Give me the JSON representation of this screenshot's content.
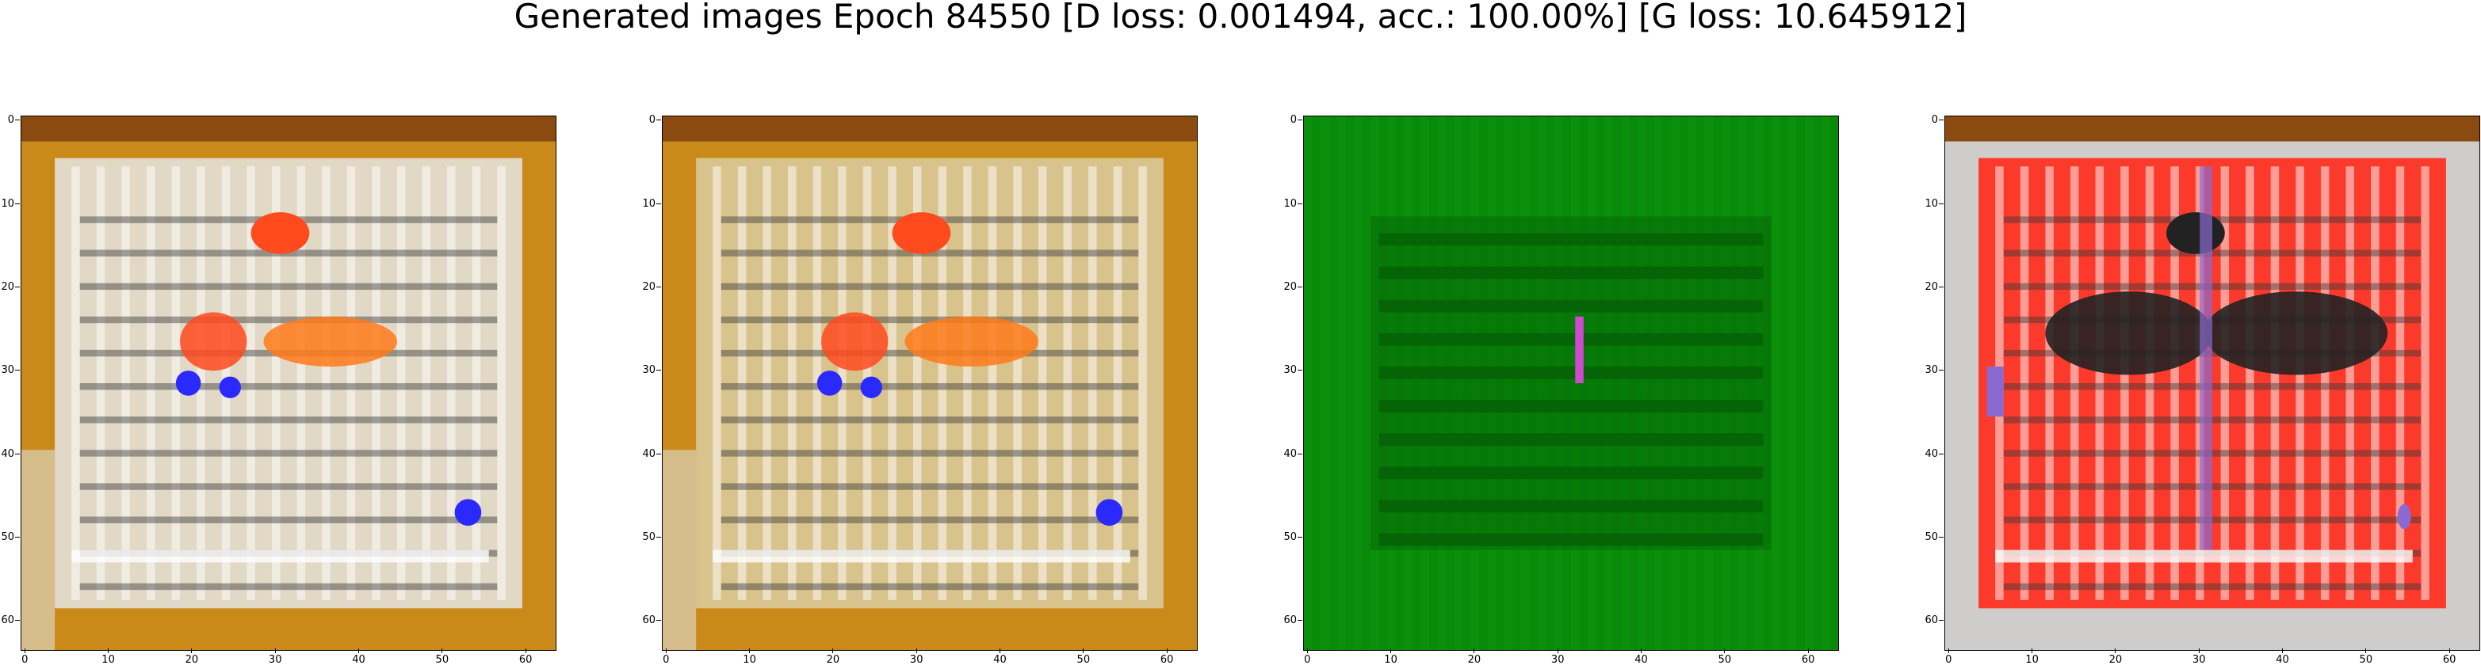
{
  "figure": {
    "title": "Generated images Epoch 84550 [D loss: 0.001494, acc.: 100.00%] [G loss: 10.645912]",
    "x_ticks": [
      "0",
      "10",
      "20",
      "30",
      "40",
      "50",
      "60"
    ],
    "y_ticks": [
      "0",
      "10",
      "20",
      "30",
      "40",
      "50",
      "60"
    ]
  },
  "images": [
    {
      "dominant_colors": [
        "#c98a1a",
        "#e3e0d8",
        "#ff4a1e",
        "#2a2aff"
      ],
      "content": "generated-sample-1"
    },
    {
      "dominant_colors": [
        "#c98a1a",
        "#d9c99a",
        "#ff4a1e",
        "#2a2aff"
      ],
      "content": "generated-sample-2"
    },
    {
      "dominant_colors": [
        "#0a8a0a",
        "#066a06",
        "#d04ad0"
      ],
      "content": "generated-sample-3"
    },
    {
      "dominant_colors": [
        "#cfcdcb",
        "#ff2a1a",
        "#222222",
        "#8a6ad0"
      ],
      "content": "generated-sample-4"
    }
  ]
}
